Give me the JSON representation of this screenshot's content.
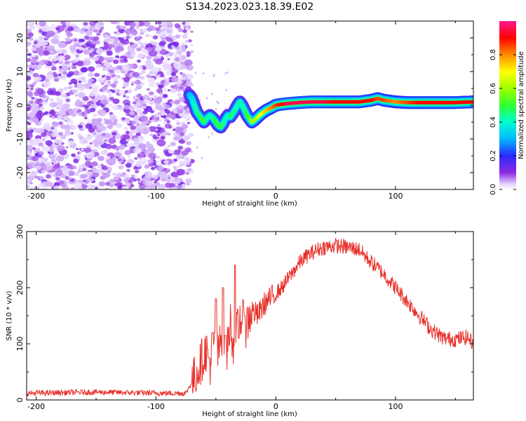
{
  "figure_title": "S134.2023.023.18.39.E02",
  "chart_data": [
    {
      "type": "heatmap",
      "title": "",
      "xlabel": "Height of straight line (km)",
      "ylabel": "Frequency (Hz)",
      "xlim": [
        -208,
        165
      ],
      "ylim": [
        -25,
        25
      ],
      "x_ticks": [
        -200,
        -100,
        0,
        100
      ],
      "y_ticks": [
        -20,
        -10,
        0,
        10,
        20
      ],
      "grid": false,
      "colorscale": "hsv rainbow (white to violet to blue to cyan to green to yellow to red to magenta)",
      "colorbar": {
        "label": "Normalized spectral amplitude",
        "range": [
          0,
          1
        ],
        "ticks": [
          0.0,
          0.2,
          0.4,
          0.6,
          0.8
        ]
      },
      "noise_region_x": [
        -208,
        -72
      ],
      "signal_track": {
        "x": [
          -72,
          -70,
          -68,
          -66,
          -64,
          -62,
          -60,
          -58,
          -55,
          -52,
          -50,
          -48,
          -46,
          -44,
          -42,
          -40,
          -38,
          -35,
          -32,
          -30,
          -28,
          -26,
          -24,
          -22,
          -20,
          -18,
          -15,
          -12,
          -8,
          -4,
          0,
          5,
          10,
          20,
          30,
          40,
          50,
          60,
          70,
          80,
          85,
          90,
          100,
          110,
          120,
          130,
          140,
          150,
          165
        ],
        "y": [
          3,
          2,
          0,
          -2,
          -3,
          -4,
          -5,
          -4,
          -3,
          -4,
          -5,
          -6,
          -6.5,
          -5.5,
          -4,
          -3,
          -3.5,
          -2,
          0,
          1,
          0,
          -1.5,
          -3,
          -4,
          -5,
          -4.5,
          -3.5,
          -2.5,
          -1.5,
          -0.8,
          0,
          0.3,
          0.5,
          0.8,
          1,
          1,
          1,
          1,
          1,
          1.5,
          2,
          1.5,
          1,
          0.8,
          0.8,
          0.8,
          0.8,
          0.8,
          1
        ],
        "amplitude": [
          0.3,
          0.35,
          0.4,
          0.45,
          0.45,
          0.5,
          0.5,
          0.45,
          0.4,
          0.45,
          0.5,
          0.5,
          0.5,
          0.45,
          0.4,
          0.4,
          0.45,
          0.45,
          0.4,
          0.45,
          0.4,
          0.45,
          0.5,
          0.55,
          0.6,
          0.6,
          0.65,
          0.7,
          0.75,
          0.8,
          0.85,
          0.9,
          0.95,
          0.95,
          0.95,
          0.95,
          0.9,
          0.9,
          0.9,
          0.9,
          0.85,
          0.85,
          0.8,
          0.85,
          0.9,
          0.9,
          0.9,
          0.9,
          0.9
        ]
      }
    },
    {
      "type": "line",
      "title": "",
      "xlabel": "Height of straight line (km)",
      "ylabel": "SNR (10 * v/v)",
      "xlim": [
        -208,
        165
      ],
      "ylim": [
        0,
        300
      ],
      "x_ticks": [
        -200,
        -100,
        0,
        100
      ],
      "y_ticks": [
        0,
        100,
        200,
        300
      ],
      "grid": false,
      "color": "#e8302a",
      "series": [
        {
          "x": [
            -208,
            -180,
            -150,
            -120,
            -90,
            -75,
            -68,
            -62,
            -58,
            -55,
            -52,
            -48,
            -45,
            -42,
            -38,
            -35,
            -30,
            -25,
            -20,
            -15,
            -10,
            -5,
            0,
            5,
            10,
            15,
            20,
            25,
            30,
            35,
            40,
            50,
            60,
            70,
            75,
            80,
            90,
            100,
            110,
            120,
            130,
            140,
            150,
            160,
            165
          ],
          "y": [
            12,
            13,
            14,
            13,
            12,
            12,
            40,
            70,
            90,
            60,
            100,
            80,
            120,
            60,
            140,
            90,
            150,
            130,
            160,
            150,
            170,
            180,
            190,
            200,
            215,
            230,
            245,
            255,
            262,
            268,
            272,
            275,
            272,
            268,
            255,
            245,
            225,
            200,
            175,
            150,
            125,
            110,
            108,
            112,
            100
          ]
        }
      ],
      "spikes": [
        {
          "x": -56,
          "y": 75
        },
        {
          "x": -53,
          "y": 120
        },
        {
          "x": -50,
          "y": 180
        },
        {
          "x": -44,
          "y": 200
        },
        {
          "x": -42,
          "y": 115
        },
        {
          "x": -34,
          "y": 240
        },
        {
          "x": -31,
          "y": 110
        },
        {
          "x": -26,
          "y": 150
        }
      ]
    }
  ]
}
